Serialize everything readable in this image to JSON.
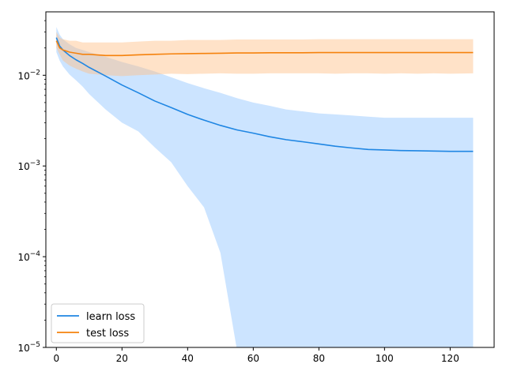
{
  "chart_data": {
    "type": "line",
    "title": "",
    "xlabel": "",
    "ylabel": "",
    "xscale": "linear",
    "yscale": "log",
    "xlim": [
      -3.2,
      133.4
    ],
    "ylim": [
      1e-05,
      0.05
    ],
    "grid": false,
    "legend": {
      "position": "lower-left"
    },
    "xticks": [
      0,
      20,
      40,
      60,
      80,
      100,
      120
    ],
    "xtick_labels": [
      "0",
      "20",
      "40",
      "60",
      "80",
      "100",
      "120"
    ],
    "yticks": [
      1e-05,
      0.0001,
      0.001,
      0.01
    ],
    "ytick_labels": [
      "10",
      "10",
      "10",
      "10"
    ],
    "ytick_exponents": [
      "−5",
      "−4",
      "−3",
      "−2"
    ],
    "series": [
      {
        "name": "learn loss",
        "color": "#1f86e3",
        "band_color": "#a3ceff",
        "band_opacity": 0.55,
        "x": [
          0,
          1,
          2,
          4,
          6,
          8,
          10,
          15,
          20,
          25,
          30,
          35,
          40,
          45,
          50,
          55,
          60,
          65,
          70,
          75,
          80,
          85,
          90,
          95,
          100,
          105,
          110,
          115,
          120,
          127
        ],
        "y": [
          0.026,
          0.021,
          0.019,
          0.0165,
          0.0148,
          0.0135,
          0.0122,
          0.0098,
          0.0078,
          0.0064,
          0.0052,
          0.0044,
          0.0037,
          0.0032,
          0.0028,
          0.0025,
          0.0023,
          0.0021,
          0.00195,
          0.00185,
          0.00175,
          0.00165,
          0.00158,
          0.00152,
          0.0015,
          0.00148,
          0.00147,
          0.00146,
          0.00145,
          0.00145
        ],
        "lower": [
          0.018,
          0.0145,
          0.0125,
          0.0102,
          0.0088,
          0.0075,
          0.0062,
          0.0042,
          0.003,
          0.0024,
          0.0016,
          0.0011,
          0.0006,
          0.00035,
          0.00011,
          9.5e-06,
          9.5e-06,
          9.5e-06,
          9.5e-06,
          9.5e-06,
          9.5e-06,
          9.5e-06,
          9.5e-06,
          9.5e-06,
          9.5e-06,
          9.5e-06,
          9.5e-06,
          9.5e-06,
          9.5e-06,
          9.5e-06
        ],
        "upper": [
          0.034,
          0.028,
          0.025,
          0.022,
          0.02,
          0.019,
          0.018,
          0.016,
          0.014,
          0.0125,
          0.011,
          0.0095,
          0.0082,
          0.0072,
          0.0064,
          0.0056,
          0.005,
          0.0046,
          0.0042,
          0.004,
          0.0038,
          0.0037,
          0.0036,
          0.0035,
          0.0034,
          0.0034,
          0.0034,
          0.0034,
          0.0034,
          0.0034
        ]
      },
      {
        "name": "test loss",
        "color": "#f5820d",
        "band_color": "#ffbf86",
        "band_opacity": 0.45,
        "x": [
          0,
          1,
          2,
          4,
          6,
          8,
          10,
          15,
          20,
          25,
          30,
          35,
          40,
          45,
          50,
          55,
          60,
          65,
          70,
          75,
          80,
          85,
          90,
          95,
          100,
          105,
          110,
          115,
          120,
          127
        ],
        "y": [
          0.024,
          0.02,
          0.019,
          0.018,
          0.0175,
          0.017,
          0.017,
          0.0165,
          0.0165,
          0.0168,
          0.017,
          0.0172,
          0.0173,
          0.0174,
          0.0175,
          0.0176,
          0.0176,
          0.0177,
          0.0177,
          0.0177,
          0.0178,
          0.0178,
          0.0178,
          0.0178,
          0.0178,
          0.0178,
          0.0178,
          0.0178,
          0.0178,
          0.0178
        ],
        "lower": [
          0.02,
          0.017,
          0.0145,
          0.0128,
          0.0118,
          0.011,
          0.0104,
          0.01,
          0.0098,
          0.01,
          0.0102,
          0.0104,
          0.0103,
          0.0104,
          0.0105,
          0.0104,
          0.0104,
          0.0105,
          0.0105,
          0.0105,
          0.0105,
          0.0104,
          0.0105,
          0.0105,
          0.0104,
          0.0105,
          0.0104,
          0.0105,
          0.0104,
          0.0105
        ],
        "upper": [
          0.03,
          0.026,
          0.025,
          0.024,
          0.024,
          0.023,
          0.023,
          0.023,
          0.023,
          0.0235,
          0.024,
          0.024,
          0.0245,
          0.0245,
          0.0245,
          0.0248,
          0.0248,
          0.0248,
          0.0248,
          0.0248,
          0.025,
          0.025,
          0.025,
          0.025,
          0.025,
          0.025,
          0.025,
          0.025,
          0.025,
          0.025
        ]
      }
    ]
  }
}
